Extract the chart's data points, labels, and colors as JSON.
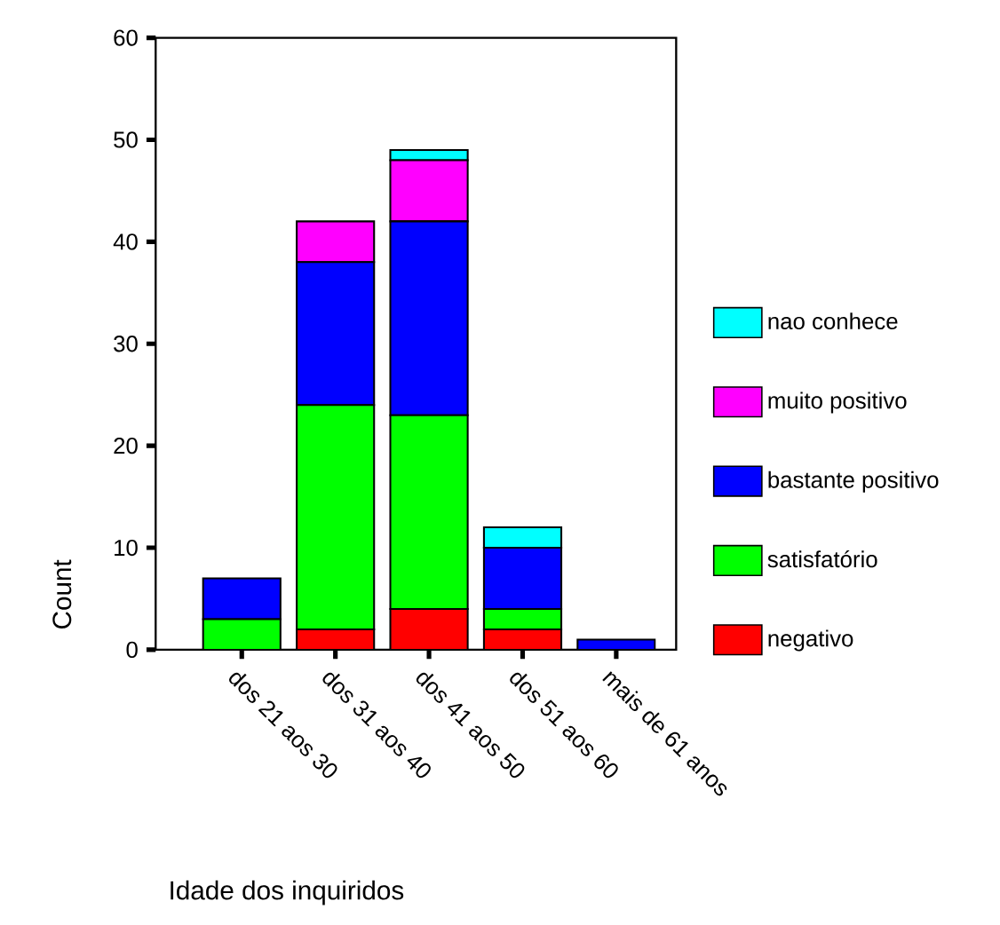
{
  "chart_data": {
    "type": "bar",
    "stacked": true,
    "xlabel": "Idade dos inquiridos",
    "ylabel": "Count",
    "categories": [
      "dos 21 aos 30",
      "dos 31 aos 40",
      "dos 41 aos 50",
      "dos 51 aos 60",
      "mais de 61 anos"
    ],
    "series": [
      {
        "name": "negativo",
        "color": "#ff0000",
        "values": [
          0,
          2,
          4,
          2,
          0
        ]
      },
      {
        "name": "satisfatório",
        "color": "#00ff00",
        "values": [
          3,
          22,
          19,
          2,
          0
        ]
      },
      {
        "name": "bastante positivo",
        "color": "#0000ff",
        "values": [
          4,
          14,
          19,
          6,
          1
        ]
      },
      {
        "name": "muito positivo",
        "color": "#ff00ff",
        "values": [
          0,
          4,
          6,
          0,
          0
        ]
      },
      {
        "name": "nao conhece",
        "color": "#00ffff",
        "values": [
          0,
          0,
          1,
          2,
          0
        ]
      }
    ],
    "ylim": [
      0,
      60
    ],
    "yticks": [
      0,
      10,
      20,
      30,
      40,
      50,
      60
    ],
    "grid": false,
    "legend": "right"
  }
}
